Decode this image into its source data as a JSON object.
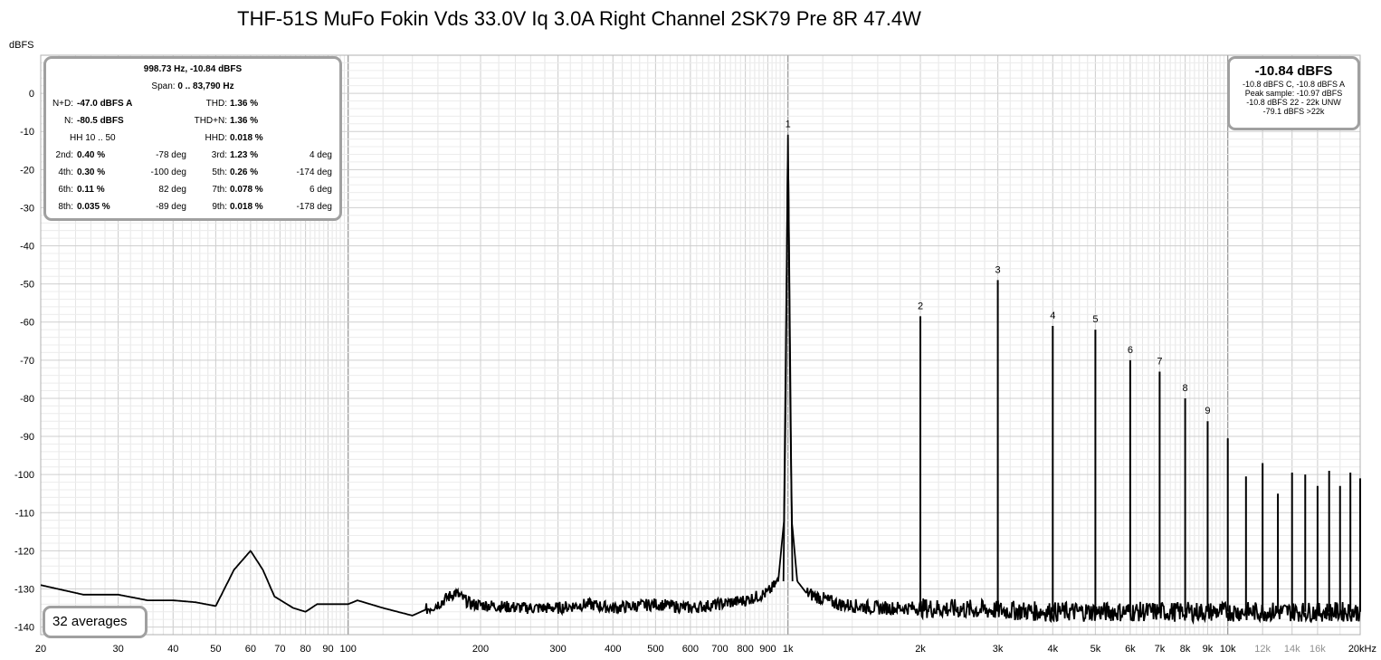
{
  "chart_data": {
    "type": "line",
    "title": "THF-51S MuFo Fokin Vds 33.0V Iq 3.0A Right Channel 2SK79 Pre 8R 47.4W",
    "ylabel": "dBFS",
    "xlabel": "",
    "x_scale": "log",
    "xlim": [
      20,
      20000
    ],
    "ylim": [
      -142,
      10
    ],
    "y_ticks": [
      0,
      -10,
      -20,
      -30,
      -40,
      -50,
      -60,
      -70,
      -80,
      -90,
      -100,
      -110,
      -120,
      -130,
      -140
    ],
    "y_tick_labels": [
      "0",
      "-10",
      "-20",
      "-30",
      "-40",
      "-50",
      "-60",
      "-70",
      "-80",
      "-90",
      "-100",
      "-110",
      "-120",
      "-130",
      "-140"
    ],
    "x_ticks": [
      20,
      30,
      40,
      50,
      60,
      70,
      80,
      90,
      100,
      200,
      300,
      400,
      500,
      600,
      700,
      800,
      900,
      1000,
      2000,
      3000,
      4000,
      5000,
      6000,
      7000,
      8000,
      9000,
      10000,
      12000,
      14000,
      16000,
      20000
    ],
    "x_tick_labels": [
      "20",
      "30",
      "40",
      "50",
      "60",
      "70",
      "80",
      "90",
      "100",
      "200",
      "300",
      "400",
      "500",
      "600",
      "700",
      "800",
      "900",
      "1k",
      "2k",
      "3k",
      "4k",
      "5k",
      "6k",
      "7k",
      "8k",
      "9k",
      "10k",
      "12k",
      "14k",
      "16k",
      "20kHz"
    ],
    "noise_floor": [
      [
        20,
        -129
      ],
      [
        25,
        -131.5
      ],
      [
        30,
        -131.5
      ],
      [
        35,
        -133
      ],
      [
        40,
        -133
      ],
      [
        45,
        -133.5
      ],
      [
        50,
        -134.5
      ],
      [
        55,
        -125
      ],
      [
        60,
        -120
      ],
      [
        64,
        -125
      ],
      [
        68,
        -132
      ],
      [
        75,
        -135
      ],
      [
        80,
        -136
      ],
      [
        85,
        -134
      ],
      [
        100,
        -134
      ],
      [
        105,
        -133
      ],
      [
        120,
        -135
      ],
      [
        140,
        -137
      ],
      [
        160,
        -134
      ],
      [
        175,
        -131
      ],
      [
        190,
        -134
      ],
      [
        250,
        -135
      ],
      [
        300,
        -135
      ],
      [
        350,
        -134
      ],
      [
        400,
        -135
      ],
      [
        500,
        -134
      ],
      [
        600,
        -135
      ],
      [
        700,
        -134
      ],
      [
        800,
        -133
      ],
      [
        900,
        -131
      ],
      [
        950,
        -128
      ],
      [
        980,
        -112
      ],
      [
        1000,
        -10.84
      ],
      [
        1020,
        -112
      ],
      [
        1050,
        -128
      ],
      [
        1100,
        -131
      ],
      [
        1300,
        -134
      ],
      [
        1600,
        -135
      ],
      [
        2000,
        -135
      ],
      [
        4000,
        -136
      ],
      [
        8000,
        -136
      ],
      [
        20000,
        -136
      ]
    ],
    "peaks": [
      {
        "f": 1000,
        "level": -10.84,
        "label": "1"
      },
      {
        "f": 2000,
        "level": -58.5,
        "label": "2"
      },
      {
        "f": 3000,
        "level": -49,
        "label": "3"
      },
      {
        "f": 4000,
        "level": -61,
        "label": "4"
      },
      {
        "f": 5000,
        "level": -62,
        "label": "5"
      },
      {
        "f": 6000,
        "level": -70,
        "label": "6"
      },
      {
        "f": 7000,
        "level": -73,
        "label": "7"
      },
      {
        "f": 8000,
        "level": -80,
        "label": "8"
      },
      {
        "f": 9000,
        "level": -86,
        "label": "9"
      },
      {
        "f": 10000,
        "level": -90.5,
        "label": ""
      },
      {
        "f": 11000,
        "level": -100.5,
        "label": ""
      },
      {
        "f": 12000,
        "level": -97,
        "label": ""
      },
      {
        "f": 13000,
        "level": -105,
        "label": ""
      },
      {
        "f": 14000,
        "level": -99.5,
        "label": ""
      },
      {
        "f": 15000,
        "level": -100,
        "label": ""
      },
      {
        "f": 16000,
        "level": -103,
        "label": ""
      },
      {
        "f": 17000,
        "level": -99,
        "label": ""
      },
      {
        "f": 18000,
        "level": -103,
        "label": ""
      },
      {
        "f": 19000,
        "level": -99.5,
        "label": ""
      },
      {
        "f": 20000,
        "level": -101,
        "label": ""
      }
    ]
  },
  "stats": {
    "peak_line": "998.73 Hz, -10.84 dBFS",
    "span_label": "Span:",
    "span_value": "0 .. 83,790 Hz",
    "nd_label": "N+D:",
    "nd_value": "-47.0 dBFS A",
    "thd_label": "THD:",
    "thd_value": "1.36 %",
    "n_label": "N:",
    "n_value": "-80.5 dBFS",
    "thdn_label": "THD+N:",
    "thdn_value": "1.36 %",
    "hh_label": "HH 10 .. 50",
    "hhd_label": "HHD:",
    "hhd_value": "0.018 %",
    "harmonics": [
      {
        "l1": "2nd:",
        "v1": "0.40 %",
        "d1": "-78 deg",
        "l2": "3rd:",
        "v2": "1.23 %",
        "d2": "4 deg"
      },
      {
        "l1": "4th:",
        "v1": "0.30 %",
        "d1": "-100 deg",
        "l2": "5th:",
        "v2": "0.26 %",
        "d2": "-174 deg"
      },
      {
        "l1": "6th:",
        "v1": "0.11 %",
        "d1": "82 deg",
        "l2": "7th:",
        "v2": "0.078 %",
        "d2": "6 deg"
      },
      {
        "l1": "8th:",
        "v1": "0.035 %",
        "d1": "-89 deg",
        "l2": "9th:",
        "v2": "0.018 %",
        "d2": "-178 deg"
      }
    ]
  },
  "level": {
    "main": "-10.84 dBFS",
    "line1": "-10.8 dBFS C, -10.8 dBFS A",
    "line2": "Peak sample: -10.97 dBFS",
    "line3": "-10.8 dBFS 22 - 22k UNW",
    "line4": "-79.1 dBFS >22k"
  },
  "averages": "32 averages"
}
